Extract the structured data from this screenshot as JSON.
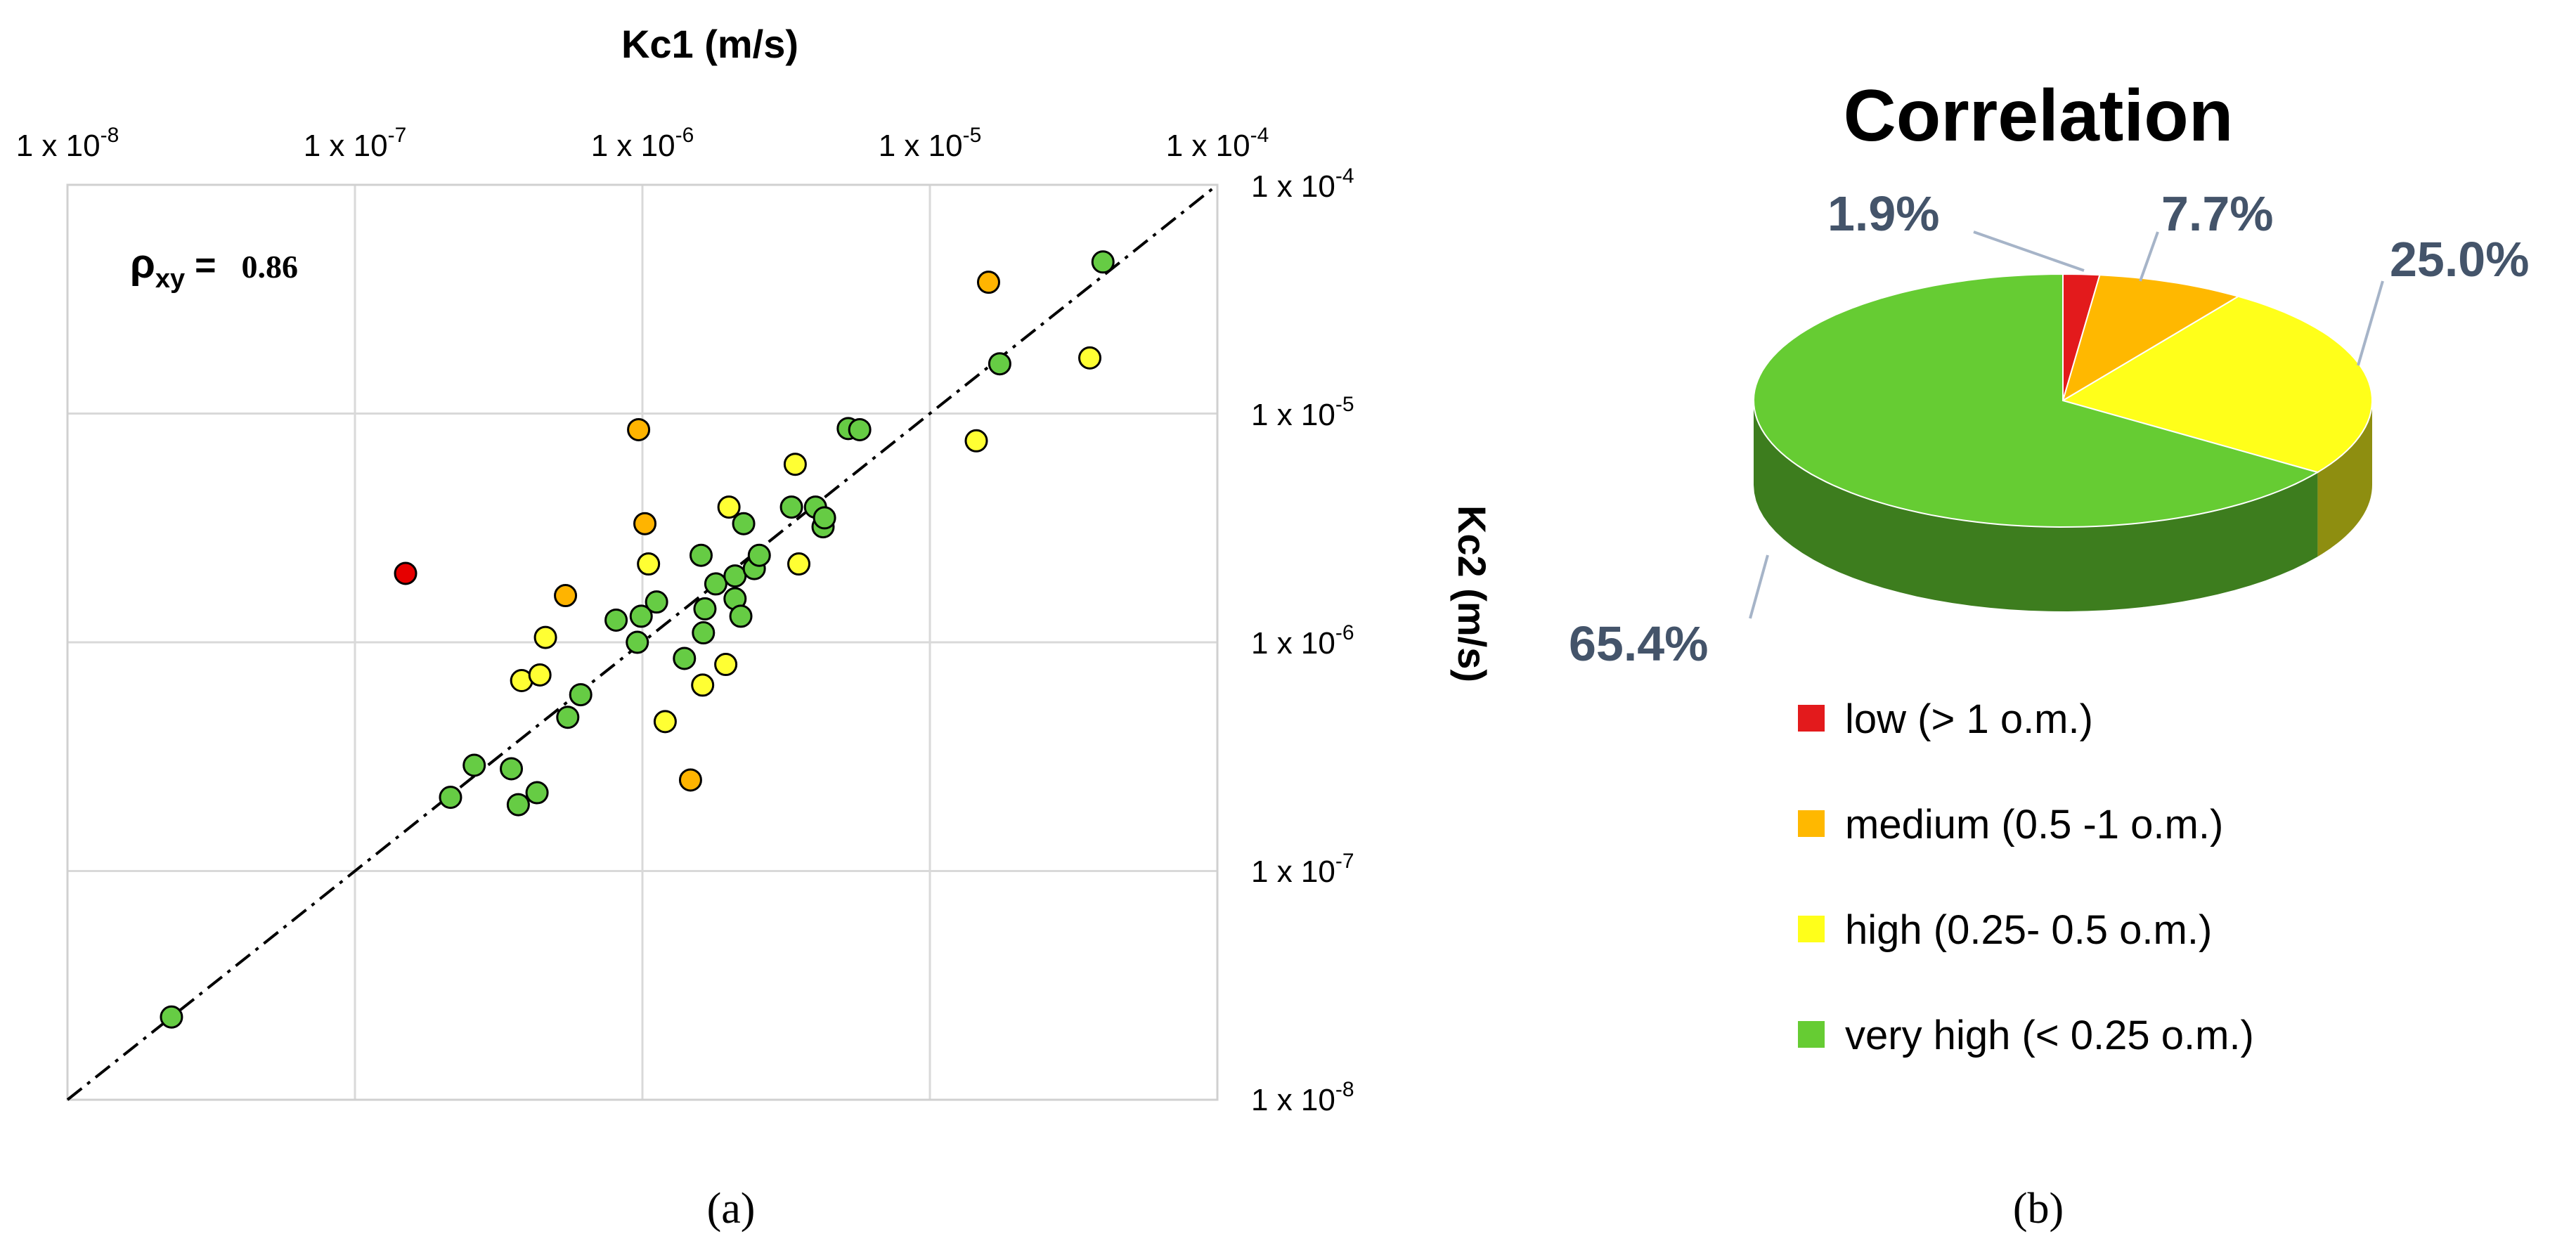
{
  "chart_data": [
    {
      "type": "scatter",
      "panel_label": "(a)",
      "x_axis": {
        "label": "Kc1 (m/s)",
        "scale": "log",
        "range": [
          1e-08,
          0.0001
        ],
        "tick_values": [
          1e-08,
          1e-07,
          1e-06,
          1e-05,
          0.0001
        ],
        "tick_labels": [
          "1 x 10",
          "1 x 10",
          "1 x 10",
          "1 x 10",
          "1 x 10"
        ],
        "tick_exponents": [
          "-8",
          "-7",
          "-6",
          "-5",
          "-4"
        ],
        "position": "top"
      },
      "y_axis": {
        "label": "Kc2 (m/s)",
        "scale": "log",
        "range": [
          1e-08,
          0.0001
        ],
        "tick_values": [
          0.0001,
          1e-05,
          1e-06,
          1e-07,
          1e-08
        ],
        "tick_labels": [
          "1 x 10",
          "1 x 10",
          "1 x 10",
          "1 x 10",
          "1 x 10"
        ],
        "tick_exponents": [
          "-4",
          "-5",
          "-6",
          "-7",
          "-8"
        ],
        "position": "right"
      },
      "grid": true,
      "reference_line": "1:1 dash-dot",
      "annotation": {
        "symbol": "ρ",
        "subscript": "xy",
        "equals": "=",
        "value": "0.86"
      },
      "colors": {
        "low": "#e60000",
        "medium": "#ffb400",
        "high": "#ffff33",
        "very_high": "#66cc44"
      },
      "points": [
        {
          "x": 2.3e-08,
          "y": 2.3e-08,
          "c": "very_high"
        },
        {
          "x": 1.5e-07,
          "y": 2e-06,
          "c": "low"
        },
        {
          "x": 2.6e-07,
          "y": 2.9e-07,
          "c": "very_high"
        },
        {
          "x": 2.15e-07,
          "y": 2.1e-07,
          "c": "very_high"
        },
        {
          "x": 3.5e-07,
          "y": 2.8e-07,
          "c": "very_high"
        },
        {
          "x": 3.7e-07,
          "y": 1.95e-07,
          "c": "very_high"
        },
        {
          "x": 4.3e-07,
          "y": 2.2e-07,
          "c": "very_high"
        },
        {
          "x": 3.8e-07,
          "y": 6.8e-07,
          "c": "high"
        },
        {
          "x": 4.4e-07,
          "y": 7.2e-07,
          "c": "high"
        },
        {
          "x": 4.6e-07,
          "y": 1.05e-06,
          "c": "high"
        },
        {
          "x": 5.4e-07,
          "y": 1.6e-06,
          "c": "medium"
        },
        {
          "x": 5.5e-07,
          "y": 4.7e-07,
          "c": "very_high"
        },
        {
          "x": 6.1e-07,
          "y": 5.9e-07,
          "c": "very_high"
        },
        {
          "x": 8.1e-07,
          "y": 1.25e-06,
          "c": "very_high"
        },
        {
          "x": 9.6e-07,
          "y": 1e-06,
          "c": "very_high"
        },
        {
          "x": 9.9e-07,
          "y": 1.3e-06,
          "c": "very_high"
        },
        {
          "x": 9.7e-07,
          "y": 8.5e-06,
          "c": "medium"
        },
        {
          "x": 1.02e-06,
          "y": 3.3e-06,
          "c": "medium"
        },
        {
          "x": 1.05e-06,
          "y": 2.2e-06,
          "c": "high"
        },
        {
          "x": 1.12e-06,
          "y": 1.5e-06,
          "c": "very_high"
        },
        {
          "x": 1.2e-06,
          "y": 4.5e-07,
          "c": "high"
        },
        {
          "x": 1.4e-06,
          "y": 8.5e-07,
          "c": "very_high"
        },
        {
          "x": 1.47e-06,
          "y": 2.5e-07,
          "c": "medium"
        },
        {
          "x": 1.62e-06,
          "y": 6.5e-07,
          "c": "high"
        },
        {
          "x": 1.63e-06,
          "y": 1.1e-06,
          "c": "very_high"
        },
        {
          "x": 1.65e-06,
          "y": 1.4e-06,
          "c": "very_high"
        },
        {
          "x": 1.6e-06,
          "y": 2.4e-06,
          "c": "very_high"
        },
        {
          "x": 1.8e-06,
          "y": 1.8e-06,
          "c": "very_high"
        },
        {
          "x": 1.95e-06,
          "y": 8e-07,
          "c": "high"
        },
        {
          "x": 2e-06,
          "y": 3.9e-06,
          "c": "high"
        },
        {
          "x": 2.1e-06,
          "y": 1.55e-06,
          "c": "very_high"
        },
        {
          "x": 2.1e-06,
          "y": 1.95e-06,
          "c": "very_high"
        },
        {
          "x": 2.2e-06,
          "y": 1.3e-06,
          "c": "very_high"
        },
        {
          "x": 2.25e-06,
          "y": 3.3e-06,
          "c": "very_high"
        },
        {
          "x": 2.45e-06,
          "y": 2.1e-06,
          "c": "very_high"
        },
        {
          "x": 2.55e-06,
          "y": 2.4e-06,
          "c": "very_high"
        },
        {
          "x": 3.3e-06,
          "y": 3.9e-06,
          "c": "very_high"
        },
        {
          "x": 3.4e-06,
          "y": 6e-06,
          "c": "high"
        },
        {
          "x": 3.5e-06,
          "y": 2.2e-06,
          "c": "high"
        },
        {
          "x": 4e-06,
          "y": 3.9e-06,
          "c": "very_high"
        },
        {
          "x": 4.25e-06,
          "y": 3.2e-06,
          "c": "very_high"
        },
        {
          "x": 4.3e-06,
          "y": 3.5e-06,
          "c": "very_high"
        },
        {
          "x": 5.2e-06,
          "y": 8.6e-06,
          "c": "very_high"
        },
        {
          "x": 5.7e-06,
          "y": 8.5e-06,
          "c": "very_high"
        },
        {
          "x": 1.45e-05,
          "y": 7.6e-06,
          "c": "high"
        },
        {
          "x": 1.6e-05,
          "y": 3.75e-05,
          "c": "medium"
        },
        {
          "x": 1.75e-05,
          "y": 1.65e-05,
          "c": "very_high"
        },
        {
          "x": 3.6e-05,
          "y": 1.75e-05,
          "c": "high"
        },
        {
          "x": 4e-05,
          "y": 4.6e-05,
          "c": "very_high"
        }
      ]
    },
    {
      "type": "pie",
      "panel_label": "(b)",
      "title": "Correlation",
      "style": "3d",
      "slices": [
        {
          "key": "low",
          "label": "low (> 1 o.m.)",
          "value": 1.9,
          "value_label": "1.9%",
          "color": "#e31a1c",
          "side": "#a01010"
        },
        {
          "key": "medium",
          "label": "medium (0.5 -1 o.m.)",
          "value": 7.7,
          "value_label": "7.7%",
          "color": "#ffb800",
          "side": "#b98600"
        },
        {
          "key": "high",
          "label": "high (0.25- 0.5 o.m.)",
          "value": 25.0,
          "value_label": "25.0%",
          "color": "#ffff1a",
          "side": "#8e8e10"
        },
        {
          "key": "very_high",
          "label": "very high (< 0.25 o.m.)",
          "value": 65.4,
          "value_label": "65.4%",
          "color": "#66cc33",
          "side": "#3d7d1e"
        }
      ],
      "label_color": "#44546a",
      "legend_position": "below"
    }
  ]
}
